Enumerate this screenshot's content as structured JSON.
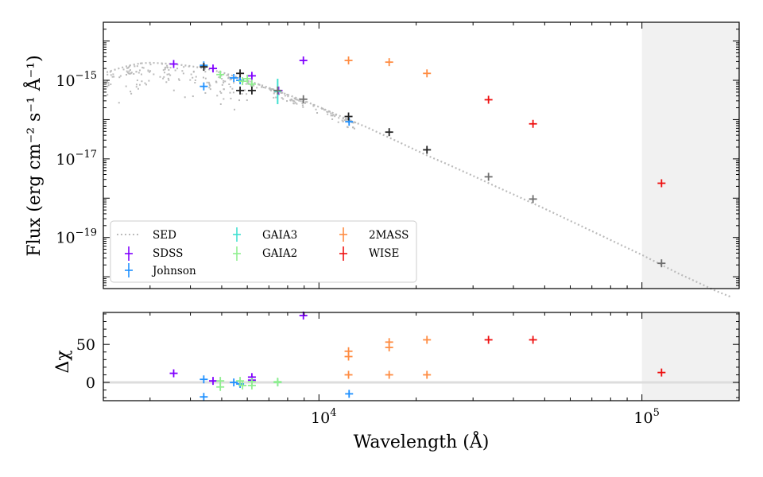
{
  "chart_data": [
    {
      "panel": "sed",
      "type": "scatter",
      "xscale": "log",
      "yscale": "log",
      "xlim": [
        2150,
        200000
      ],
      "ylim": [
        5e-21,
        3e-14
      ],
      "ylabel": "Flux (erg cm⁻² s⁻¹ Å⁻¹)",
      "yticks": [
        {
          "value": 1e-15,
          "base": "10",
          "exp": "−15"
        },
        {
          "value": 1e-17,
          "base": "10",
          "exp": "−17"
        },
        {
          "value": 1e-19,
          "base": "10",
          "exp": "−19"
        }
      ],
      "shaded_region": [
        100000,
        200000
      ],
      "model": {
        "name": "SED",
        "color": "#bbbbbb",
        "points": [
          [
            2200,
            1.6e-15
          ],
          [
            2400,
            2e-15
          ],
          [
            2600,
            2.4e-15
          ],
          [
            2800,
            2.7e-15
          ],
          [
            3000,
            2.8e-15
          ],
          [
            3300,
            2.7e-15
          ],
          [
            3600,
            2.55e-15
          ],
          [
            4000,
            2.3e-15
          ],
          [
            4500,
            1.95e-15
          ],
          [
            5000,
            1.6e-15
          ],
          [
            5500,
            1.25e-15
          ],
          [
            6000,
            1e-15
          ],
          [
            7000,
            6.5e-16
          ],
          [
            8000,
            4.3e-16
          ],
          [
            9000,
            3e-16
          ],
          [
            10000,
            2.1e-16
          ],
          [
            11000,
            1.5e-16
          ],
          [
            12000,
            1.1e-16
          ],
          [
            14000,
            6.5e-17
          ],
          [
            16000,
            3.9e-17
          ],
          [
            18000,
            2.5e-17
          ],
          [
            20000,
            1.65e-17
          ],
          [
            22000,
            1.15e-17
          ],
          [
            25000,
            7.3e-18
          ],
          [
            30000,
            3.7e-18
          ],
          [
            35000,
            2.05e-18
          ],
          [
            40000,
            1.25e-18
          ],
          [
            45000,
            8e-19
          ],
          [
            50000,
            5.4e-19
          ],
          [
            60000,
            2.65e-19
          ],
          [
            70000,
            1.45e-19
          ],
          [
            80000,
            8.6e-20
          ],
          [
            90000,
            5.4e-20
          ],
          [
            100000,
            3.6e-20
          ],
          [
            115000,
            2e-20
          ],
          [
            130000,
            1.2e-20
          ],
          [
            150000,
            7e-21
          ],
          [
            170000,
            4.3e-21
          ],
          [
            190000,
            3e-21
          ]
        ]
      },
      "series": [
        {
          "name": "SDSS",
          "color": "#8000ff",
          "points": [
            [
              3550,
              2.6e-15
            ],
            [
              4700,
              2e-15
            ],
            [
              6200,
              1.3e-15
            ],
            [
              7500,
              5.5e-16
            ],
            [
              8950,
              3.2e-15
            ]
          ]
        },
        {
          "name": "Johnson",
          "color": "#1e90ff",
          "points": [
            [
              4400,
              2.4e-15
            ],
            [
              4400,
              7e-16
            ],
            [
              5450,
              1.15e-15
            ],
            [
              5700,
              1e-15
            ],
            [
              12400,
              8.8e-17
            ]
          ]
        },
        {
          "name": "GAIA3",
          "color": "#40e0d0",
          "points": [
            [
              7450,
              5.2e-16
            ]
          ]
        },
        {
          "name": "GAIA2",
          "color": "#90ee90",
          "points": [
            [
              4950,
              1.4e-15
            ],
            [
              5800,
              9.5e-16
            ],
            [
              6000,
              1.1e-15
            ],
            [
              6200,
              8e-16
            ],
            [
              7450,
              5.5e-16
            ]
          ]
        },
        {
          "name": "2MASS",
          "color": "#ff8c42",
          "points": [
            [
              12350,
              3.2e-15
            ],
            [
              16500,
              2.9e-15
            ],
            [
              21600,
              1.5e-15
            ]
          ]
        },
        {
          "name": "WISE",
          "color": "#ee1111",
          "points": [
            [
              33500,
              3.2e-16
            ],
            [
              46000,
              7.8e-17
            ],
            [
              115000,
              2.4e-18
            ]
          ]
        },
        {
          "name": "",
          "color": "#222222",
          "points": [
            [
              4400,
              2.2e-15
            ],
            [
              5700,
              1.5e-15
            ],
            [
              5700,
              5.5e-16
            ],
            [
              6200,
              5.5e-16
            ],
            [
              12350,
              1.2e-16
            ],
            [
              16500,
              4.8e-17
            ],
            [
              21600,
              1.7e-17
            ]
          ]
        },
        {
          "name": "",
          "color": "#6e6e6e",
          "points": [
            [
              7450,
              5.5e-16
            ],
            [
              8950,
              3.3e-16
            ],
            [
              33500,
              3.5e-18
            ],
            [
              46000,
              9.5e-19
            ],
            [
              115000,
              2.2e-20
            ]
          ]
        }
      ],
      "legend": [
        "SED",
        "SDSS",
        "Johnson",
        "GAIA3",
        "GAIA2",
        "2MASS",
        "WISE"
      ],
      "legend_position": "lower-left"
    },
    {
      "panel": "residuals",
      "type": "scatter",
      "xscale": "log",
      "xlim": [
        2150,
        200000
      ],
      "ylim": [
        -24,
        92
      ],
      "xlabel": "Wavelength (Å)",
      "ylabel": "Δχ",
      "yticks": [
        0,
        50
      ],
      "xticks": [
        {
          "value": 10000,
          "base": "10",
          "exp": "4"
        },
        {
          "value": 100000,
          "base": "10",
          "exp": "5"
        }
      ],
      "shaded_region": [
        100000,
        200000
      ],
      "series": [
        {
          "name": "SDSS",
          "color": "#8000ff",
          "points": [
            [
              3550,
              12
            ],
            [
              4700,
              2
            ],
            [
              6200,
              7
            ],
            [
              6200,
              3
            ],
            [
              8950,
              88
            ]
          ]
        },
        {
          "name": "Johnson",
          "color": "#1e90ff",
          "points": [
            [
              4400,
              4
            ],
            [
              4400,
              -19
            ],
            [
              5450,
              0
            ],
            [
              5700,
              -2
            ],
            [
              12400,
              -15
            ]
          ]
        },
        {
          "name": "GAIA3",
          "color": "#40e0d0",
          "points": [
            [
              7450,
              0
            ]
          ]
        },
        {
          "name": "GAIA2",
          "color": "#90ee90",
          "points": [
            [
              4950,
              2
            ],
            [
              4950,
              -6
            ],
            [
              5700,
              2
            ],
            [
              5800,
              -4
            ],
            [
              6200,
              -4
            ],
            [
              6200,
              1
            ],
            [
              7450,
              0
            ],
            [
              7450,
              1
            ]
          ]
        },
        {
          "name": "2MASS",
          "color": "#ff8c42",
          "points": [
            [
              12350,
              10
            ],
            [
              12350,
              34
            ],
            [
              12350,
              41
            ],
            [
              16500,
              10
            ],
            [
              16500,
              46
            ],
            [
              16500,
              53
            ],
            [
              21600,
              10
            ],
            [
              21600,
              56
            ]
          ]
        },
        {
          "name": "WISE",
          "color": "#ee1111",
          "points": [
            [
              33500,
              56
            ],
            [
              46000,
              56
            ],
            [
              115000,
              13
            ]
          ]
        }
      ]
    }
  ]
}
